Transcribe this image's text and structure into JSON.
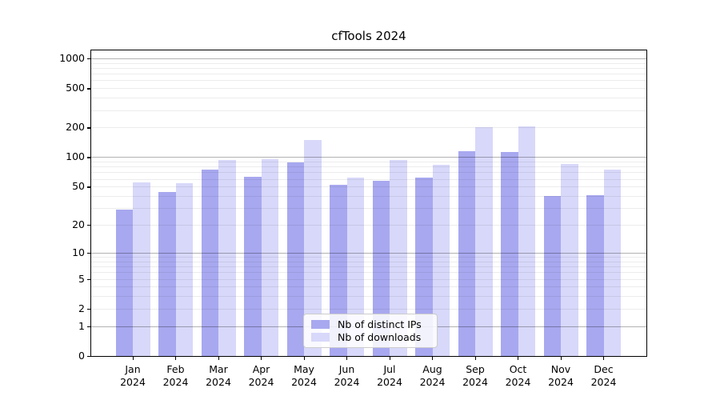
{
  "chart_data": {
    "type": "bar",
    "title": "cfTools 2024",
    "categories": [
      "Jan",
      "Feb",
      "Mar",
      "Apr",
      "May",
      "Jun",
      "Jul",
      "Aug",
      "Sep",
      "Oct",
      "Nov",
      "Dec"
    ],
    "year_label": "2024",
    "series": [
      {
        "name": "Nb of distinct IPs",
        "color": "#a8a8f0",
        "values": [
          29,
          44,
          75,
          63,
          89,
          52,
          57,
          62,
          115,
          112,
          40,
          41
        ]
      },
      {
        "name": "Nb of downloads",
        "color": "#d8d8fa",
        "values": [
          55,
          54,
          94,
          95,
          150,
          62,
          94,
          83,
          200,
          206,
          86,
          75
        ]
      }
    ],
    "yticks": [
      0,
      1,
      2,
      5,
      10,
      20,
      50,
      100,
      200,
      500,
      1000
    ],
    "yscale": "log10(x+1)",
    "ylim": [
      0,
      1200
    ],
    "grid": true,
    "grid_major_color": "#b0b0b0",
    "grid_minor_color": "#ebebeb",
    "legend_position": "bottom-center",
    "legend_entries": [
      "Nb of distinct IPs",
      "Nb of downloads"
    ]
  }
}
